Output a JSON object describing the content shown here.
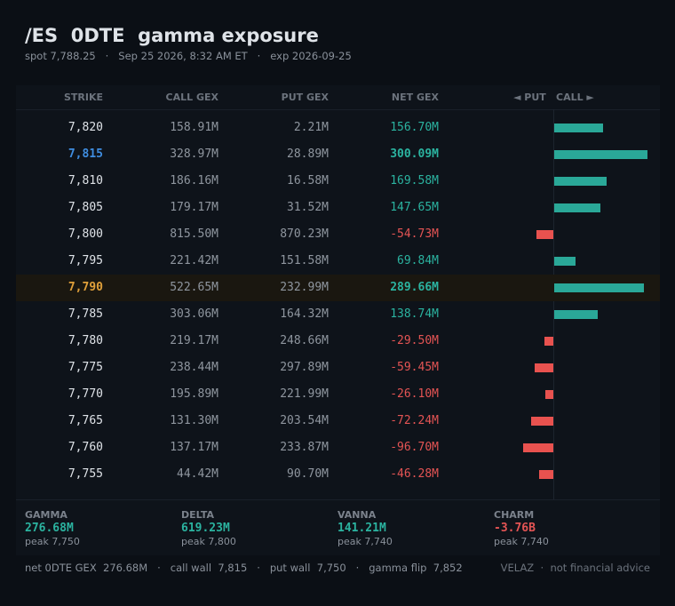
{
  "header": {
    "title": "/ES  0DTE  gamma exposure",
    "subtitle": "spot 7,788.25   ·   Sep 25 2026, 8:32 AM ET   ·   exp 2026-09-25"
  },
  "table": {
    "col_strike": "STRIKE",
    "col_call": "CALL GEX",
    "col_put": "PUT GEX",
    "col_net": "NET GEX",
    "col_put_side": "◄ PUT",
    "col_call_side": "CALL ►"
  },
  "colors": {
    "positive": "#2bb3a0",
    "negative": "#e45454",
    "call_wall_strike": "#3f8de0",
    "spot_strike": "#e0a03a"
  },
  "chart_data": {
    "type": "bar",
    "orientation": "horizontal",
    "unit": "M",
    "categories": [
      "7,820",
      "7,815",
      "7,810",
      "7,805",
      "7,800",
      "7,795",
      "7,790",
      "7,785",
      "7,780",
      "7,775",
      "7,770",
      "7,765",
      "7,760",
      "7,755"
    ],
    "series": [
      {
        "name": "CALL GEX",
        "values": [
          158.91,
          328.97,
          186.16,
          179.17,
          815.5,
          221.42,
          522.65,
          303.06,
          219.17,
          238.44,
          195.89,
          131.3,
          137.17,
          44.42
        ]
      },
      {
        "name": "PUT GEX",
        "values": [
          2.21,
          28.89,
          16.58,
          31.52,
          870.23,
          151.58,
          232.99,
          164.32,
          248.66,
          297.89,
          221.99,
          203.54,
          233.87,
          90.7
        ]
      },
      {
        "name": "NET GEX",
        "values": [
          156.7,
          300.09,
          169.58,
          147.65,
          -54.73,
          69.84,
          289.66,
          138.74,
          -29.5,
          -59.45,
          -26.1,
          -72.24,
          -96.7,
          -46.28
        ]
      }
    ],
    "rows": [
      {
        "strike": "7,820",
        "call": "158.91M",
        "put": "2.21M",
        "net": "156.70M",
        "net_value": 156.7
      },
      {
        "strike": "7,815",
        "call": "328.97M",
        "put": "28.89M",
        "net": "300.09M",
        "net_value": 300.09,
        "tag": "call_wall"
      },
      {
        "strike": "7,810",
        "call": "186.16M",
        "put": "16.58M",
        "net": "169.58M",
        "net_value": 169.58
      },
      {
        "strike": "7,805",
        "call": "179.17M",
        "put": "31.52M",
        "net": "147.65M",
        "net_value": 147.65
      },
      {
        "strike": "7,800",
        "call": "815.50M",
        "put": "870.23M",
        "net": "-54.73M",
        "net_value": -54.73
      },
      {
        "strike": "7,795",
        "call": "221.42M",
        "put": "151.58M",
        "net": "69.84M",
        "net_value": 69.84
      },
      {
        "strike": "7,790",
        "call": "522.65M",
        "put": "232.99M",
        "net": "289.66M",
        "net_value": 289.66,
        "tag": "spot"
      },
      {
        "strike": "7,785",
        "call": "303.06M",
        "put": "164.32M",
        "net": "138.74M",
        "net_value": 138.74
      },
      {
        "strike": "7,780",
        "call": "219.17M",
        "put": "248.66M",
        "net": "-29.50M",
        "net_value": -29.5
      },
      {
        "strike": "7,775",
        "call": "238.44M",
        "put": "297.89M",
        "net": "-59.45M",
        "net_value": -59.45
      },
      {
        "strike": "7,770",
        "call": "195.89M",
        "put": "221.99M",
        "net": "-26.10M",
        "net_value": -26.1
      },
      {
        "strike": "7,765",
        "call": "131.30M",
        "put": "203.54M",
        "net": "-72.24M",
        "net_value": -72.24
      },
      {
        "strike": "7,760",
        "call": "137.17M",
        "put": "233.87M",
        "net": "-96.70M",
        "net_value": -96.7
      },
      {
        "strike": "7,755",
        "call": "44.42M",
        "put": "90.70M",
        "net": "-46.28M",
        "net_value": -46.28
      }
    ],
    "bar_axis_max": 300.09
  },
  "stats": [
    {
      "label": "GAMMA",
      "value": "276.68M",
      "peak": "peak 7,750",
      "sign": "pos"
    },
    {
      "label": "DELTA",
      "value": "619.23M",
      "peak": "peak 7,800",
      "sign": "pos"
    },
    {
      "label": "VANNA",
      "value": "141.21M",
      "peak": "peak 7,740",
      "sign": "pos"
    },
    {
      "label": "CHARM",
      "value": "-3.76B",
      "peak": "peak 7,740",
      "sign": "neg"
    }
  ],
  "footer": {
    "left": "net 0DTE GEX  276.68M   ·   call wall  7,815   ·   put wall  7,750   ·   gamma flip  7,852",
    "right": "VELAZ  ·  not financial advice"
  }
}
